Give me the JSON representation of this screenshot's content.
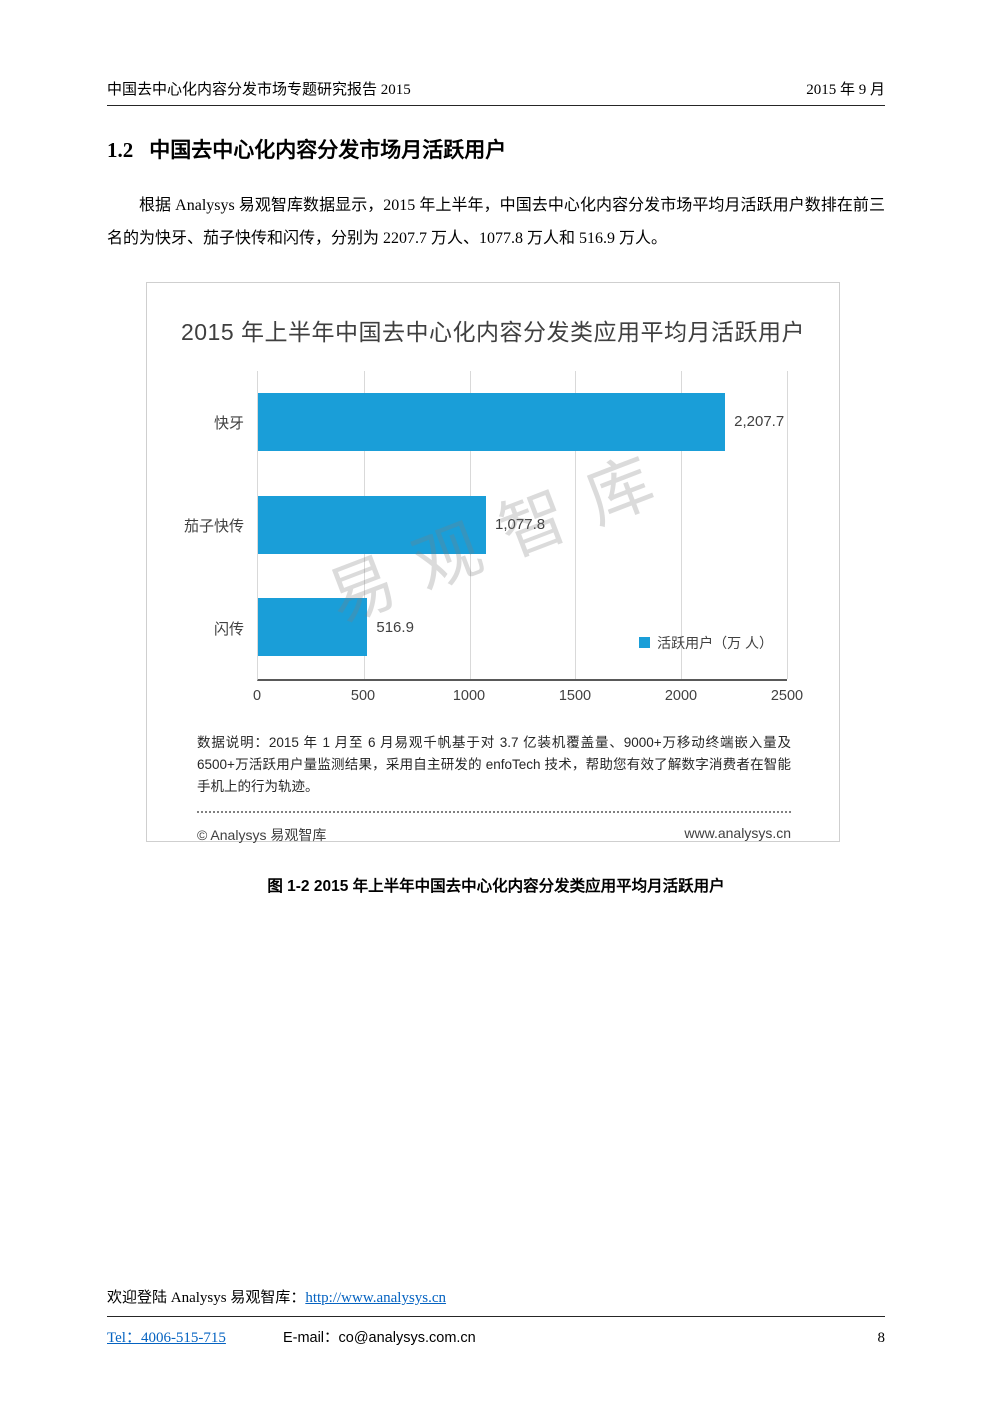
{
  "header": {
    "left": "中国去中心化内容分发市场专题研究报告 2015",
    "right": "2015 年 9 月"
  },
  "section": {
    "number": "1.2",
    "title": "中国去中心化内容分发市场月活跃用户"
  },
  "paragraph": "根据 Analysys 易观智库数据显示，2015 年上半年，中国去中心化内容分发市场平均月活跃用户数排在前三名的为快牙、茄子快传和闪传，分别为 2207.7 万人、1077.8 万人和 516.9 万人。",
  "chart": {
    "watermark": "易观智库",
    "note": "数据说明：2015 年 1 月至 6 月易观千帆基于对 3.7 亿装机覆盖量、9000+万移动终端嵌入量及 6500+万活跃用户量监测结果，采用自主研发的 enfoTech 技术，帮助您有效了解数字消费者在智能手机上的行为轨迹。",
    "footer_left": "© Analysys 易观智库",
    "footer_right": "www.analysys.cn"
  },
  "chart_data": {
    "type": "bar",
    "orientation": "horizontal",
    "title": "2015 年上半年中国去中心化内容分发类应用平均月活跃用户",
    "categories": [
      "快牙",
      "茄子快传",
      "闪传"
    ],
    "values": [
      2207.7,
      1077.8,
      516.9
    ],
    "value_labels": [
      "2,207.7",
      "1,077.8",
      "516.9"
    ],
    "xlim": [
      0,
      2500
    ],
    "xticks": [
      "0",
      "500",
      "1000",
      "1500",
      "2000",
      "2500"
    ],
    "legend": "活跃用户（万 人）",
    "legend_position": "bottom-right-inside",
    "grid": true,
    "bar_color": "#1A9ED8"
  },
  "caption": "图 1-2 2015 年上半年中国去中心化内容分发类应用平均月活跃用户",
  "footer": {
    "welcome_prefix": "欢迎登陆 Analysys 易观智库：",
    "welcome_link": "http://www.analysys.cn",
    "tel": "Tel：4006-515-715",
    "email": "E-mail：co@analysys.com.cn",
    "page_number": "8"
  }
}
